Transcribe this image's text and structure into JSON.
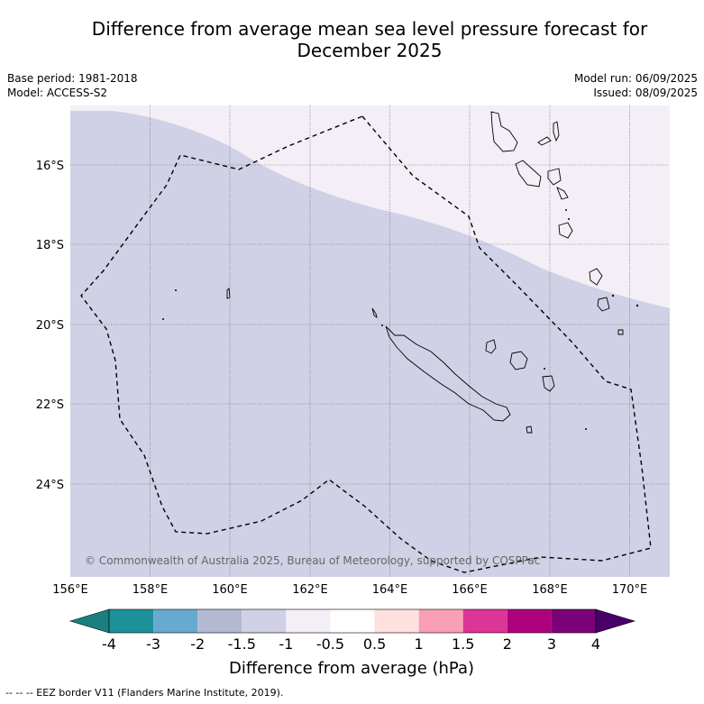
{
  "title_line1": "Difference from average mean sea level pressure forecast for",
  "title_line2": "December 2025",
  "base_period": "Base period: 1981-2018",
  "model": "Model: ACCESS-S2",
  "model_run": "Model run: 06/09/2025",
  "issued": "Issued: 08/09/2025",
  "lon_labels": [
    "156°E",
    "158°E",
    "160°E",
    "162°E",
    "164°E",
    "166°E",
    "168°E",
    "170°E"
  ],
  "lat_labels": [
    "16°S",
    "18°S",
    "20°S",
    "22°S",
    "24°S"
  ],
  "copyright": "© Commonwealth of Australia 2025, Bureau of Meteorology, supported by COSPPac",
  "colorbar": {
    "ticks": [
      "-4",
      "-3",
      "-2",
      "-1.5",
      "-1",
      "-0.5",
      "0.5",
      "1",
      "1.5",
      "2",
      "3",
      "4"
    ],
    "colors": [
      "#1a7f80",
      "#1d9199",
      "#68a9d0",
      "#b3b9d2",
      "#d0d1e6",
      "#f4eef7",
      "#ffffff",
      "#fee0de",
      "#fa9fb5",
      "#dd3497",
      "#ae017e",
      "#7a0177",
      "#49006a"
    ],
    "label": "Difference from average (hPa)"
  },
  "footnote": "-- -- -- EEZ border V11 (Flanders Marine Institute, 2019).",
  "map_fill_colors": {
    "main": "#d0d1e6",
    "north": "#f4eef7"
  }
}
